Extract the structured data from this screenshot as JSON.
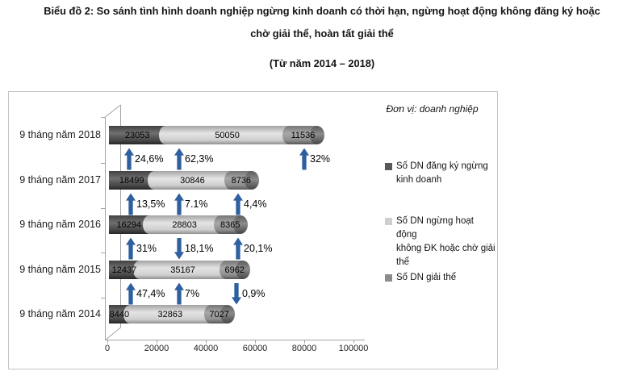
{
  "title": {
    "line1": "Biểu đồ 2: So sánh tình hình doanh nghiệp ngừng kinh doanh có thời hạn, ngừng hoạt động không đăng ký hoặc",
    "line2": "chờ giải thể, hoàn tất giải thể",
    "subtitle": "(Từ năm 2014 – 2018)"
  },
  "unit_label": "Đơn vị: doanh nghiệp",
  "legend": [
    {
      "label": "Số DN đăng ký ngừng\nkinh doanh",
      "color": "#595959"
    },
    {
      "label": "Số DN ngừng hoạt\nđộng\nkhông ĐK hoặc chờ giải\nthể",
      "color": "#cfcfcf"
    },
    {
      "label": "Số DN giải thể",
      "color": "#8c8c8c"
    }
  ],
  "colors": {
    "segment_dark": "#595959",
    "segment_light": "#cfcfcf",
    "segment_mid": "#8c8c8c",
    "arrow_blue": "#2e5f9e"
  },
  "chart_data": {
    "type": "bar",
    "orientation": "horizontal",
    "stacked": true,
    "title": "Biểu đồ 2: So sánh tình hình doanh nghiệp ngừng kinh doanh có thời hạn, ngừng hoạt động không đăng ký hoặc chờ giải thể, hoàn tất giải thể",
    "subtitle": "(Từ năm 2014 – 2018)",
    "unit": "Đơn vị: doanh nghiệp",
    "categories": [
      "9 tháng năm 2018",
      "9 tháng năm 2017",
      "9 tháng năm 2016",
      "9 tháng năm 2015",
      "9 tháng năm 2014"
    ],
    "series": [
      {
        "name": "Số DN đăng ký ngừng kinh doanh",
        "color": "#595959",
        "values": [
          23053,
          18499,
          16294,
          12437,
          8440
        ]
      },
      {
        "name": "Số DN ngừng hoạt động không ĐK hoặc chờ giải thể",
        "color": "#cfcfcf",
        "values": [
          50050,
          30846,
          28803,
          35167,
          32863
        ]
      },
      {
        "name": "Số DN giải thể",
        "color": "#8c8c8c",
        "values": [
          11536,
          8736,
          8365,
          6962,
          7027
        ]
      }
    ],
    "x_ticks": [
      "0",
      "20000",
      "40000",
      "60000",
      "80000",
      "100000"
    ],
    "xlim": [
      0,
      100000
    ],
    "grid": false,
    "legend_position": "right",
    "annotations": [
      {
        "between": "2017 to 2018",
        "items": [
          {
            "pct": "24,6%",
            "dir": "up",
            "x": 143
          },
          {
            "pct": "62,3%",
            "dir": "up",
            "x": 205
          },
          {
            "pct": "32%",
            "dir": "up",
            "x": 360
          }
        ]
      },
      {
        "between": "2016 to 2017",
        "items": [
          {
            "pct": "13,5%",
            "dir": "up",
            "x": 145
          },
          {
            "pct": "7.1%",
            "dir": "up",
            "x": 205
          },
          {
            "pct": "4,4%",
            "dir": "up",
            "x": 278
          }
        ]
      },
      {
        "between": "2015 to 2016",
        "items": [
          {
            "pct": "31%",
            "dir": "up",
            "x": 145
          },
          {
            "pct": "18,1%",
            "dir": "down",
            "x": 205
          },
          {
            "pct": "20,1%",
            "dir": "up",
            "x": 278
          }
        ]
      },
      {
        "between": "2014 to 2015",
        "items": [
          {
            "pct": "47,4%",
            "dir": "up",
            "x": 145
          },
          {
            "pct": "7%",
            "dir": "up",
            "x": 205
          },
          {
            "pct": "0,9%",
            "dir": "down",
            "x": 276
          }
        ]
      }
    ]
  }
}
